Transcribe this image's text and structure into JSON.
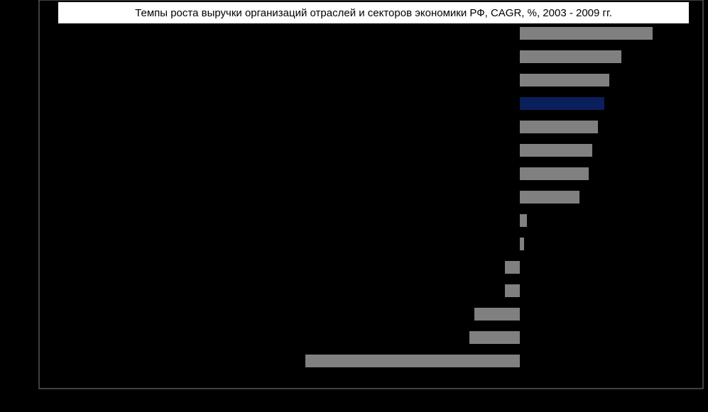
{
  "chart_data": {
    "type": "barh",
    "title": "Темпы роста выручки организаций отраслей и секторов экономики РФ, CAGR, %,  2003 - 2009 гг.",
    "categories": [
      null,
      null,
      null,
      null,
      null,
      null,
      null,
      null,
      null,
      null,
      null,
      null,
      null,
      null,
      null
    ],
    "values": [
      18.7,
      14.3,
      12.6,
      11.9,
      11.0,
      10.2,
      9.7,
      8.4,
      1.0,
      0.6,
      -2.1,
      -2.1,
      -6.4,
      -7.1,
      -30.2
    ],
    "colors": [
      "#808080",
      "#808080",
      "#808080",
      "#0a1f5c",
      "#808080",
      "#808080",
      "#808080",
      "#808080",
      "#808080",
      "#808080",
      "#808080",
      "#808080",
      "#808080",
      "#808080",
      "#808080"
    ],
    "xlim": [
      -67.7,
      25.8
    ]
  }
}
